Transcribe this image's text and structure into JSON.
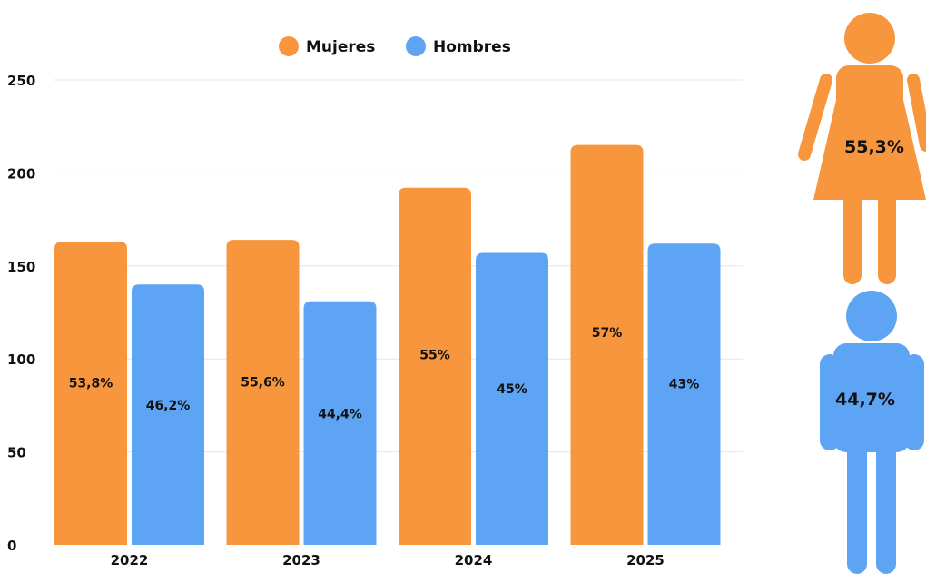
{
  "chart_data": {
    "type": "bar",
    "categories": [
      "2022",
      "2023",
      "2024",
      "2025"
    ],
    "series": [
      {
        "name": "Mujeres",
        "values": [
          163,
          164,
          192,
          215
        ],
        "labels": [
          "53,8%",
          "55,6%",
          "55%",
          "57%"
        ]
      },
      {
        "name": "Hombres",
        "values": [
          140,
          131,
          157,
          162
        ],
        "labels": [
          "46,2%",
          "44,4%",
          "45%",
          "43%"
        ]
      }
    ],
    "ylim": [
      0,
      250
    ],
    "yticks": [
      "0",
      "50",
      "100",
      "150",
      "200",
      "250"
    ],
    "grid": true,
    "legend_position": "top-center",
    "colors": {
      "Mujeres": "#f7963d",
      "Hombres": "#5ea4f5"
    }
  },
  "figures": {
    "woman": {
      "icon": "woman-icon",
      "label": "55,3%",
      "color": "#f7963d"
    },
    "man": {
      "icon": "man-icon",
      "label": "44,7%",
      "color": "#5ea4f5"
    }
  }
}
